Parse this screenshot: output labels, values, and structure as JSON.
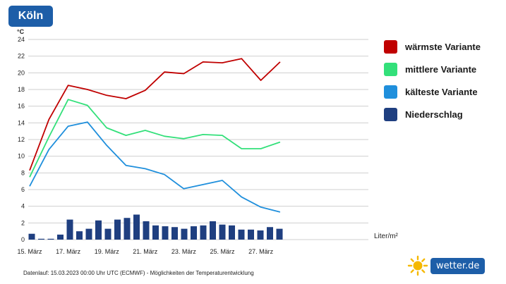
{
  "header": {
    "city": "Köln"
  },
  "legend": {
    "items": [
      {
        "label": "wärmste Variante",
        "color": "#c00000"
      },
      {
        "label": "mittlere Variante",
        "color": "#33e07a"
      },
      {
        "label": "kälteste Variante",
        "color": "#1f8fdc"
      },
      {
        "label": "Niederschlag",
        "color": "#1f3f80"
      }
    ]
  },
  "footer": {
    "text": "Datenlauf: 15.03.2023 00:00 Uhr UTC (ECMWF) - Möglichkeiten der Temperaturentwicklung"
  },
  "logo": {
    "text": "wetter.de",
    "icon": "sun-icon"
  },
  "chart_data": {
    "type": "line",
    "ylabel": "°C",
    "ylim": [
      0,
      24
    ],
    "yticks": [
      0,
      2,
      4,
      6,
      8,
      10,
      12,
      14,
      16,
      18,
      20,
      22,
      24
    ],
    "grid": true,
    "x_tick_labels": [
      "15. März",
      "17. März",
      "19. März",
      "21. März",
      "23. März",
      "25. März",
      "27. März"
    ],
    "series": [
      {
        "name": "wärmste Variante",
        "color": "#c00000",
        "values": [
          8.3,
          14.4,
          18.5,
          18.0,
          17.3,
          16.9,
          17.9,
          20.1,
          19.9,
          21.3,
          21.2,
          21.7,
          19.1,
          21.3
        ]
      },
      {
        "name": "mittlere Variante",
        "color": "#33e07a",
        "values": [
          7.5,
          12.3,
          16.8,
          16.1,
          13.4,
          12.5,
          13.1,
          12.4,
          12.1,
          12.6,
          12.5,
          10.9,
          10.9,
          11.7
        ]
      },
      {
        "name": "kälteste Variante",
        "color": "#1f8fdc",
        "values": [
          6.4,
          10.8,
          13.6,
          14.1,
          11.3,
          8.9,
          8.5,
          7.8,
          6.1,
          6.6,
          7.1,
          5.1,
          3.9,
          3.3
        ]
      }
    ],
    "precipitation": {
      "name": "Niederschlag",
      "unit": "Liter/m²",
      "color": "#1f3f80",
      "values": [
        0.7,
        0.1,
        0.1,
        0.6,
        2.4,
        1.0,
        1.3,
        2.3,
        1.3,
        2.4,
        2.6,
        3.0,
        2.2,
        1.7,
        1.6,
        1.5,
        1.3,
        1.6,
        1.7,
        2.2,
        1.8,
        1.7,
        1.2,
        1.2,
        1.1,
        1.5,
        1.3
      ]
    }
  }
}
